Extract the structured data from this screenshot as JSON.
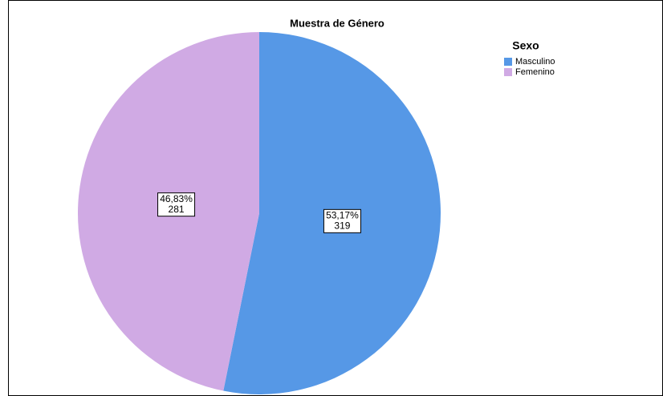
{
  "chart_data": {
    "type": "pie",
    "title": "Muestra de Género",
    "legend_title": "Sexo",
    "categories": [
      "Masculino",
      "Femenino"
    ],
    "values": [
      53.17,
      46.83
    ],
    "value_labels": [
      "53,17%",
      "46,83%"
    ],
    "counts": [
      319,
      281
    ],
    "colors": [
      "#5698e6",
      "#d0aae4"
    ],
    "legend": "top-right"
  }
}
